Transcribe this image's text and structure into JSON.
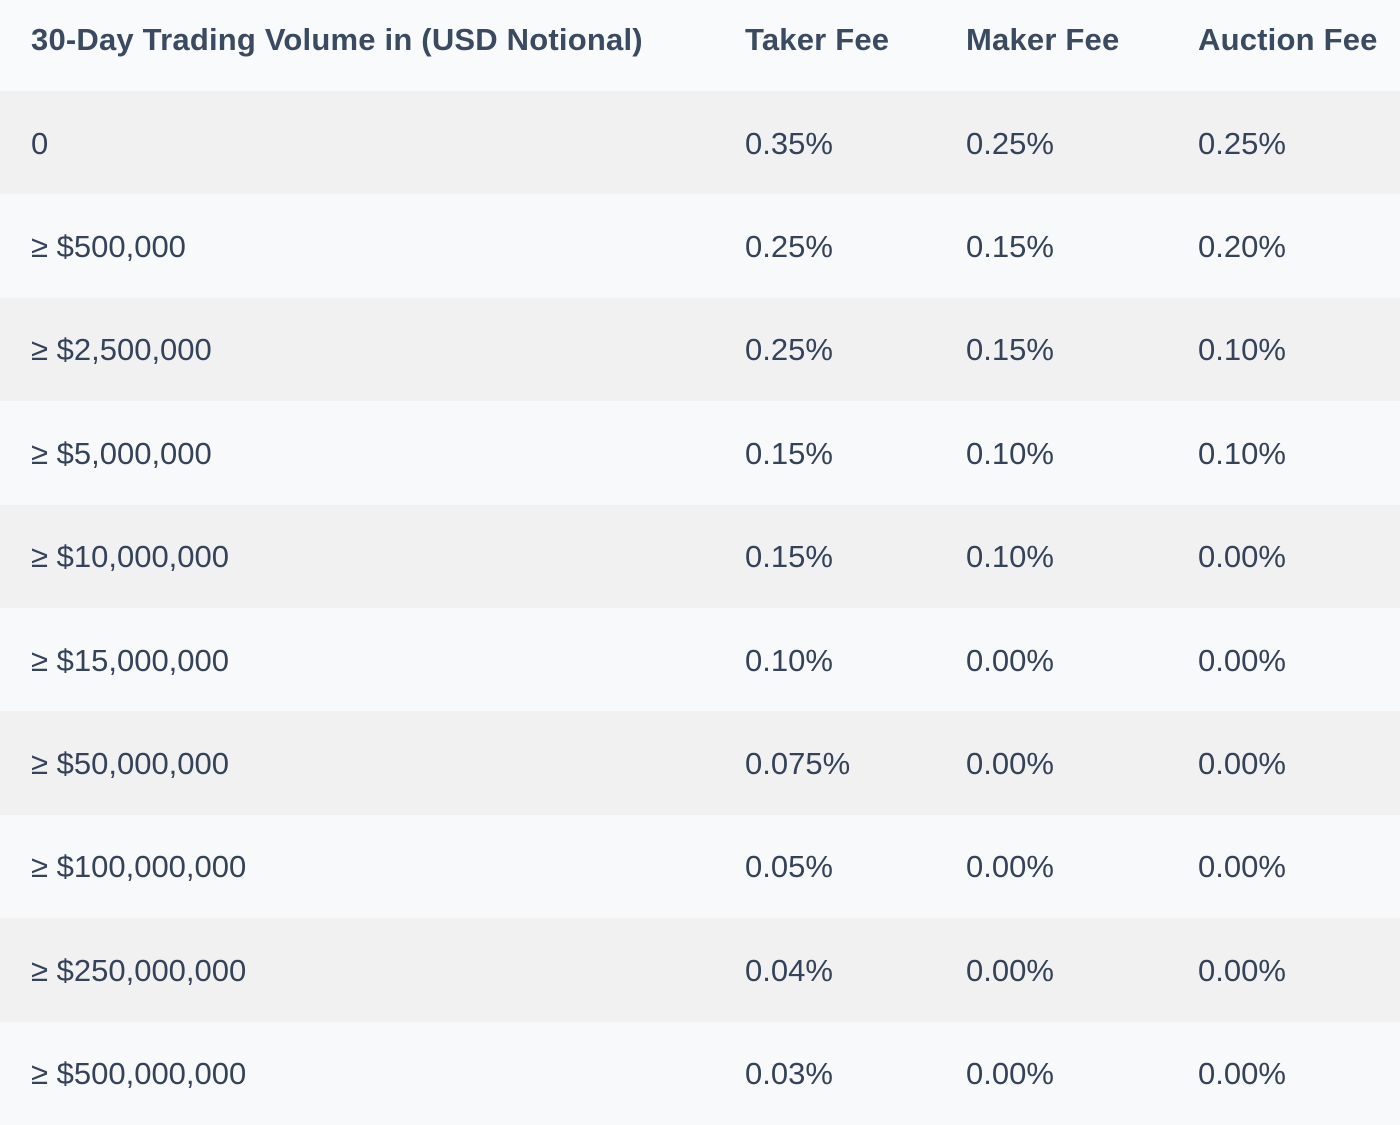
{
  "table": {
    "headers": [
      "30-Day Trading Volume in (USD Notional)",
      "Taker Fee",
      "Maker Fee",
      "Auction Fee"
    ],
    "rows": [
      [
        "0",
        "0.35%",
        "0.25%",
        "0.25%"
      ],
      [
        "≥ $500,000",
        "0.25%",
        "0.15%",
        "0.20%"
      ],
      [
        "≥ $2,500,000",
        "0.25%",
        "0.15%",
        "0.10%"
      ],
      [
        "≥ $5,000,000",
        "0.15%",
        "0.10%",
        "0.10%"
      ],
      [
        "≥ $10,000,000",
        "0.15%",
        "0.10%",
        "0.00%"
      ],
      [
        "≥ $15,000,000",
        "0.10%",
        "0.00%",
        "0.00%"
      ],
      [
        "≥ $50,000,000",
        "0.075%",
        "0.00%",
        "0.00%"
      ],
      [
        "≥ $100,000,000",
        "0.05%",
        "0.00%",
        "0.00%"
      ],
      [
        "≥ $250,000,000",
        "0.04%",
        "0.00%",
        "0.00%"
      ],
      [
        "≥ $500,000,000",
        "0.03%",
        "0.00%",
        "0.00%"
      ]
    ]
  },
  "colors": {
    "text": "#34435a",
    "header_text": "#3a4a60",
    "row_odd": "#f1f1f2",
    "row_even": "#f8f9fb"
  }
}
